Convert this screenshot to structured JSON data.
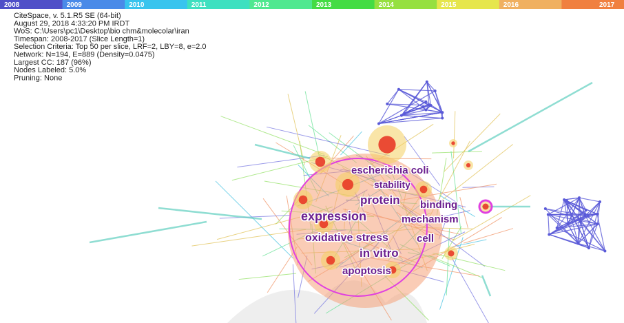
{
  "timeline": {
    "years": [
      "2008",
      "2009",
      "2010",
      "2011",
      "2012",
      "2013",
      "2014",
      "2015",
      "2016",
      "2017"
    ]
  },
  "info": [
    "CiteSpace, v. 5.1.R5 SE (64-bit)",
    "August 29, 2018 4:33:20 PM IRDT",
    "WoS: C:\\Users\\pc1\\Desktop\\bio chm&molecolar\\iran",
    "Timespan: 2008-2017 (Slice Length=1)",
    "Selection Criteria: Top 50 per slice, LRF=2, LBY=8, e=2.0",
    "Network: N=194, E=889 (Density=0.0475)",
    "Largest CC: 187 (96%)",
    "Nodes Labeled: 5.0%",
    "Pruning: None"
  ],
  "nodes": [
    {
      "label": "escherichia coli"
    },
    {
      "label": "stability"
    },
    {
      "label": "protein"
    },
    {
      "label": "binding"
    },
    {
      "label": "expression"
    },
    {
      "label": "mechanism"
    },
    {
      "label": "oxidative stress"
    },
    {
      "label": "cell"
    },
    {
      "label": "in vitro"
    },
    {
      "label": "apoptosis"
    }
  ]
}
